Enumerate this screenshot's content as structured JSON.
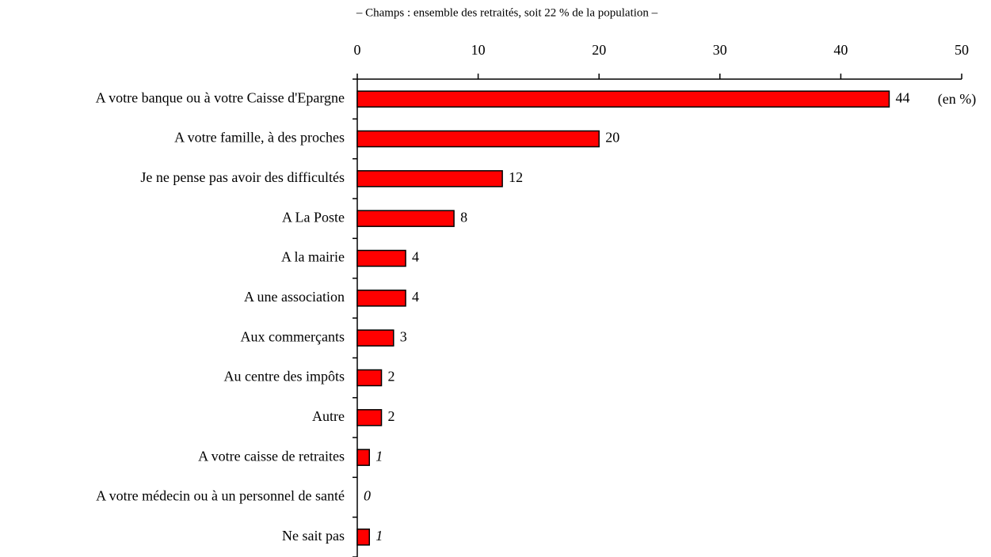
{
  "chart_data": {
    "type": "hbar",
    "subtitle": "– Champs : ensemble des retraités, soit 22 % de la population –",
    "unit_label": "(en %)",
    "categories": [
      "A votre banque ou à votre Caisse d'Epargne",
      "A votre famille, à des proches",
      "Je ne pense pas avoir des difficultés",
      "A La Poste",
      "A la mairie",
      "A une association",
      "Aux commerçants",
      "Au centre des impôts",
      "Autre",
      "A votre caisse de retraites",
      "A votre médecin ou à un personnel de santé",
      "Ne sait pas"
    ],
    "values": [
      44,
      20,
      12,
      8,
      4,
      4,
      3,
      2,
      2,
      1,
      0,
      1
    ],
    "label_style": [
      "normal",
      "normal",
      "normal",
      "normal",
      "normal",
      "normal",
      "normal",
      "normal",
      "normal",
      "italic",
      "italic",
      "italic"
    ],
    "color": "#ff0000",
    "xlim": [
      0,
      50
    ],
    "xticks": [
      0,
      10,
      20,
      30,
      40,
      50
    ]
  }
}
